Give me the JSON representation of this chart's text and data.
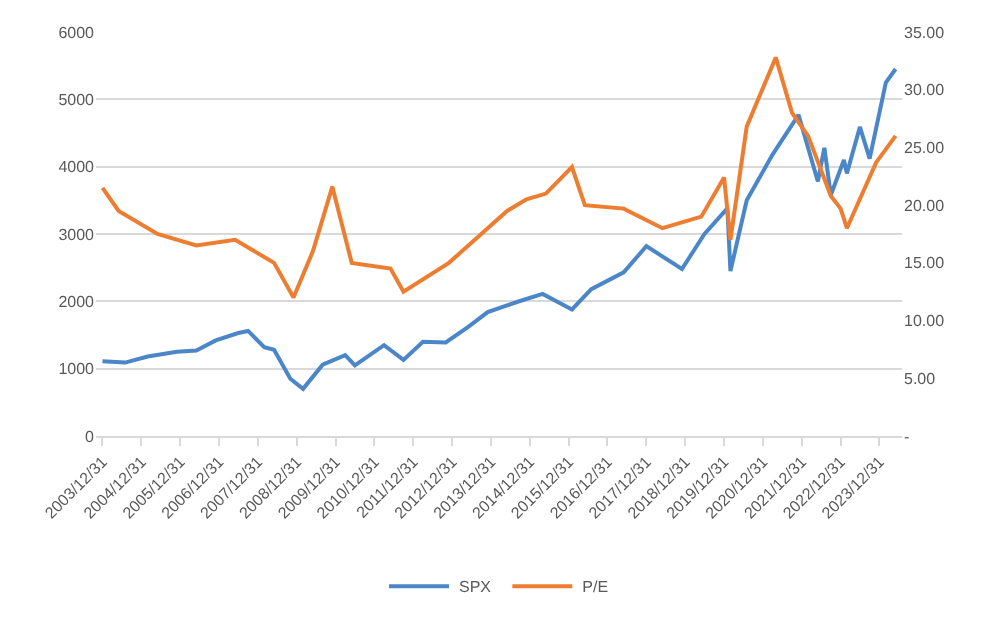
{
  "chart_data": {
    "type": "line",
    "legend": "bottom",
    "grid": "y",
    "marker": "none",
    "line_style": "solid",
    "ylim": [
      0,
      6000
    ],
    "yticks": [
      0,
      1000,
      2000,
      3000,
      4000,
      5000,
      6000
    ],
    "y2lim": [
      0,
      35
    ],
    "y2ticks": [
      {
        "value": 0,
        "label": "-"
      },
      {
        "value": 5,
        "label": "5.00"
      },
      {
        "value": 10,
        "label": "10.00"
      },
      {
        "value": 15,
        "label": "15.00"
      },
      {
        "value": 20,
        "label": "20.00"
      },
      {
        "value": 25,
        "label": "25.00"
      },
      {
        "value": 30,
        "label": "30.00"
      },
      {
        "value": 35,
        "label": "35.00"
      }
    ],
    "xlim": [
      "2003-11-01",
      "2024-07-31"
    ],
    "xticks": [
      {
        "value": "2003-12-31",
        "label": "2003/12/31"
      },
      {
        "value": "2004-12-31",
        "label": "2004/12/31"
      },
      {
        "value": "2005-12-31",
        "label": "2005/12/31"
      },
      {
        "value": "2006-12-31",
        "label": "2006/12/31"
      },
      {
        "value": "2007-12-31",
        "label": "2007/12/31"
      },
      {
        "value": "2008-12-31",
        "label": "2008/12/31"
      },
      {
        "value": "2009-12-31",
        "label": "2009/12/31"
      },
      {
        "value": "2010-12-31",
        "label": "2010/12/31"
      },
      {
        "value": "2011-12-31",
        "label": "2011/12/31"
      },
      {
        "value": "2012-12-31",
        "label": "2012/12/31"
      },
      {
        "value": "2013-12-31",
        "label": "2013/12/31"
      },
      {
        "value": "2014-12-31",
        "label": "2014/12/31"
      },
      {
        "value": "2015-12-31",
        "label": "2015/12/31"
      },
      {
        "value": "2016-12-31",
        "label": "2016/12/31"
      },
      {
        "value": "2017-12-31",
        "label": "2017/12/31"
      },
      {
        "value": "2018-12-31",
        "label": "2018/12/31"
      },
      {
        "value": "2019-12-31",
        "label": "2019/12/31"
      },
      {
        "value": "2020-12-31",
        "label": "2020/12/31"
      },
      {
        "value": "2021-12-31",
        "label": "2021/12/31"
      },
      {
        "value": "2022-12-31",
        "label": "2022/12/31"
      },
      {
        "value": "2023-12-31",
        "label": "2023/12/31"
      }
    ],
    "series": [
      {
        "name": "SPX",
        "color": "#4a86c8",
        "x": [
          "2004-01",
          "2004-08",
          "2005-03",
          "2005-12",
          "2006-06",
          "2006-12",
          "2007-07",
          "2007-10",
          "2008-03",
          "2008-06",
          "2008-11",
          "2009-03",
          "2009-09",
          "2010-04",
          "2010-07",
          "2011-04",
          "2011-10",
          "2012-04",
          "2012-11",
          "2013-06",
          "2013-12",
          "2014-09",
          "2015-05",
          "2016-02",
          "2016-08",
          "2017-06",
          "2018-01",
          "2018-12",
          "2019-07",
          "2020-02",
          "2020-03",
          "2020-08",
          "2021-04",
          "2021-12",
          "2022-06",
          "2022-08",
          "2022-10",
          "2023-02",
          "2023-03",
          "2023-07",
          "2023-10",
          "2024-03",
          "2024-06"
        ],
        "values": [
          1110,
          1090,
          1180,
          1250,
          1270,
          1420,
          1530,
          1560,
          1320,
          1280,
          850,
          700,
          1060,
          1200,
          1050,
          1350,
          1130,
          1400,
          1390,
          1620,
          1840,
          1990,
          2110,
          1880,
          2180,
          2430,
          2820,
          2480,
          3000,
          3380,
          2450,
          3500,
          4180,
          4770,
          3780,
          4280,
          3580,
          4100,
          3900,
          4590,
          4120,
          5250,
          5450
        ]
      },
      {
        "name": "P/E",
        "color": "#ed7d31",
        "axis": "y2",
        "x": [
          "2004-01",
          "2004-06",
          "2005-06",
          "2006-06",
          "2007-06",
          "2008-06",
          "2008-12",
          "2009-06",
          "2009-12",
          "2010-06",
          "2011-06",
          "2011-10",
          "2012-12",
          "2013-12",
          "2014-06",
          "2014-12",
          "2015-06",
          "2016-02",
          "2016-06",
          "2017-06",
          "2018-06",
          "2019-06",
          "2020-01",
          "2020-03",
          "2020-08",
          "2021-05",
          "2021-10",
          "2022-03",
          "2022-10",
          "2023-01",
          "2023-03",
          "2023-12",
          "2024-06"
        ],
        "values": [
          21.5,
          19.5,
          17.5,
          16.5,
          17,
          15,
          12,
          16,
          21.6,
          15,
          14.5,
          12.5,
          15,
          18,
          19.5,
          20.5,
          21,
          23.3,
          20,
          19.7,
          18,
          19,
          22.4,
          17,
          26.8,
          32.8,
          28,
          26,
          20.8,
          19.7,
          18,
          23.7,
          26
        ]
      }
    ]
  }
}
